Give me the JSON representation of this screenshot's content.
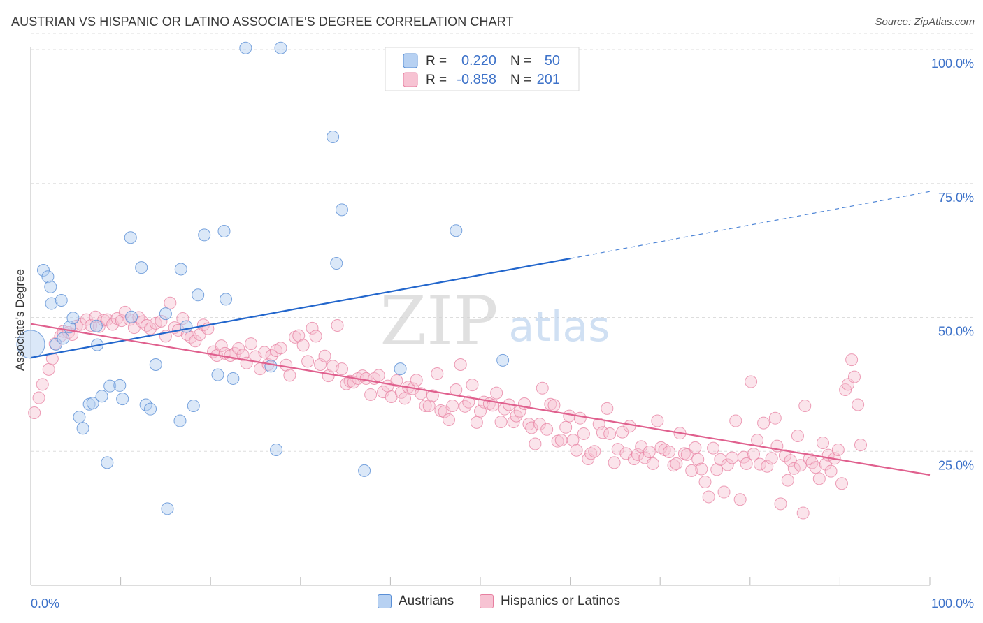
{
  "header": {
    "title": "AUSTRIAN VS HISPANIC OR LATINO ASSOCIATE'S DEGREE CORRELATION CHART",
    "source": "Source: ZipAtlas.com"
  },
  "watermark": {
    "zip": "ZIP",
    "atlas": "atlas"
  },
  "colors": {
    "blue_fill": "#b7d1f2",
    "blue_stroke": "#5a8fd6",
    "blue_line": "#2266cc",
    "pink_fill": "#f7c3d3",
    "pink_stroke": "#e77fa0",
    "pink_line": "#e0608e",
    "tick_label": "#3d72c9",
    "grid": "#dddddd"
  },
  "legend": {
    "rows": [
      {
        "r_label": "R =",
        "r_value": "0.220",
        "n_label": "N =",
        "n_value": "50"
      },
      {
        "r_label": "R =",
        "r_value": "-0.858",
        "n_label": "N =",
        "n_value": "201"
      }
    ]
  },
  "bottom_legend": {
    "austrians": "Austrians",
    "hispanics": "Hispanics or Latinos"
  },
  "chart_data": {
    "type": "scatter",
    "title": "AUSTRIAN VS HISPANIC OR LATINO ASSOCIATE'S DEGREE CORRELATION CHART",
    "xlabel": "",
    "ylabel": "Associate's Degree",
    "xlim": [
      0,
      100
    ],
    "ylim": [
      0,
      103
    ],
    "x_tick_labels": [
      "0.0%",
      "100.0%"
    ],
    "y_ticks": [
      25,
      50,
      75,
      100
    ],
    "y_tick_labels": [
      "25.0%",
      "50.0%",
      "75.0%",
      "100.0%"
    ],
    "grid": true,
    "legend_position": "top-center",
    "series": [
      {
        "name": "Austrians",
        "r": 0.22,
        "n": 50,
        "trend": {
          "x": [
            0,
            60
          ],
          "y": [
            42.5,
            61
          ],
          "extended_to": [
            100,
            73.5
          ]
        },
        "points": [
          [
            0,
            45
          ],
          [
            1.4,
            58.8
          ],
          [
            1.9,
            57.6
          ],
          [
            2.2,
            55.7
          ],
          [
            2.3,
            52.6
          ],
          [
            3.4,
            53.2
          ],
          [
            2.8,
            45
          ],
          [
            3.6,
            46.1
          ],
          [
            4.3,
            48.2
          ],
          [
            4.7,
            49.9
          ],
          [
            7.3,
            48.4
          ],
          [
            7.4,
            44.9
          ],
          [
            5.4,
            31.4
          ],
          [
            5.8,
            29.3
          ],
          [
            6.5,
            33.8
          ],
          [
            6.9,
            34
          ],
          [
            7.9,
            35.3
          ],
          [
            8.5,
            22.9
          ],
          [
            8.8,
            37.2
          ],
          [
            9.9,
            37.3
          ],
          [
            10.2,
            34.8
          ],
          [
            11.1,
            64.9
          ],
          [
            11.2,
            50.1
          ],
          [
            12.3,
            59.3
          ],
          [
            12.8,
            33.7
          ],
          [
            13.3,
            32.9
          ],
          [
            13.9,
            41.2
          ],
          [
            15.0,
            50.7
          ],
          [
            15.2,
            14.3
          ],
          [
            16.6,
            30.7
          ],
          [
            16.7,
            59
          ],
          [
            17.3,
            48.3
          ],
          [
            18.1,
            33.5
          ],
          [
            18.6,
            54.2
          ],
          [
            19.3,
            65.4
          ],
          [
            20.8,
            39.3
          ],
          [
            21.5,
            66.1
          ],
          [
            21.7,
            53.4
          ],
          [
            22.5,
            38.6
          ],
          [
            23.9,
            100.3
          ],
          [
            26.7,
            40.9
          ],
          [
            27.3,
            25.3
          ],
          [
            27.8,
            100.3
          ],
          [
            33.6,
            83.7
          ],
          [
            34.0,
            60.1
          ],
          [
            34.6,
            70.1
          ],
          [
            37.1,
            21.4
          ],
          [
            41.1,
            40.4
          ],
          [
            47.3,
            66.2
          ],
          [
            52.5,
            42
          ]
        ]
      },
      {
        "name": "Hispanics or Latinos",
        "r": -0.858,
        "n": 201,
        "trend": {
          "x": [
            0,
            100
          ],
          "y": [
            48.8,
            20.6
          ]
        },
        "points": [
          [
            0.4,
            32.2
          ],
          [
            0.9,
            35
          ],
          [
            1.3,
            37.5
          ],
          [
            2.0,
            40.3
          ],
          [
            2.4,
            42.3
          ],
          [
            2.7,
            45.1
          ],
          [
            3.3,
            46.5
          ],
          [
            3.6,
            47.4
          ],
          [
            4.2,
            47.2
          ],
          [
            4.6,
            46.8
          ],
          [
            5.1,
            48.4
          ],
          [
            5.6,
            48.7
          ],
          [
            6.2,
            49.6
          ],
          [
            6.7,
            48.5
          ],
          [
            7.2,
            50.1
          ],
          [
            7.6,
            48.3
          ],
          [
            8.1,
            49.5
          ],
          [
            8.5,
            49.6
          ],
          [
            9.1,
            48.7
          ],
          [
            9.6,
            49.8
          ],
          [
            10.1,
            49.4
          ],
          [
            10.5,
            51
          ],
          [
            11.0,
            49.6
          ],
          [
            11.5,
            48.1
          ],
          [
            12.0,
            50
          ],
          [
            12.4,
            49.2
          ],
          [
            12.9,
            48.5
          ],
          [
            13.3,
            47.9
          ],
          [
            13.9,
            48.9
          ],
          [
            14.5,
            49.3
          ],
          [
            15.0,
            46.5
          ],
          [
            15.5,
            52.7
          ],
          [
            16.0,
            48.1
          ],
          [
            16.4,
            47.6
          ],
          [
            16.9,
            49.8
          ],
          [
            17.4,
            46.8
          ],
          [
            17.8,
            46.3
          ],
          [
            18.3,
            45.6
          ],
          [
            18.8,
            46.8
          ],
          [
            19.2,
            48.6
          ],
          [
            19.7,
            47.9
          ],
          [
            20.3,
            43.6
          ],
          [
            20.7,
            42.9
          ],
          [
            21.2,
            44.7
          ],
          [
            21.6,
            43.3
          ],
          [
            22.2,
            42.9
          ],
          [
            22.7,
            43.3
          ],
          [
            23.1,
            44.2
          ],
          [
            23.6,
            43
          ],
          [
            24.0,
            41.5
          ],
          [
            24.5,
            45.1
          ],
          [
            25.0,
            42.7
          ],
          [
            25.5,
            40.4
          ],
          [
            26.0,
            43.5
          ],
          [
            26.4,
            41.2
          ],
          [
            26.8,
            42.9
          ],
          [
            27.3,
            43.8
          ],
          [
            27.8,
            44.3
          ],
          [
            28.4,
            41.1
          ],
          [
            28.8,
            39.2
          ],
          [
            29.4,
            46.3
          ],
          [
            29.8,
            46.6
          ],
          [
            30.3,
            44.8
          ],
          [
            30.8,
            41.8
          ],
          [
            31.3,
            48
          ],
          [
            31.7,
            46.5
          ],
          [
            32.2,
            41.2
          ],
          [
            32.7,
            42.8
          ],
          [
            33.1,
            39.1
          ],
          [
            33.6,
            40.9
          ],
          [
            34.1,
            48.5
          ],
          [
            34.6,
            40.4
          ],
          [
            35.1,
            37.6
          ],
          [
            35.5,
            38.1
          ],
          [
            35.9,
            37.9
          ],
          [
            36.4,
            38.6
          ],
          [
            36.9,
            39.1
          ],
          [
            37.3,
            38.6
          ],
          [
            37.8,
            35.6
          ],
          [
            38.2,
            38.6
          ],
          [
            38.7,
            39.2
          ],
          [
            39.2,
            36.1
          ],
          [
            39.7,
            37.2
          ],
          [
            40.1,
            35.2
          ],
          [
            40.7,
            38.2
          ],
          [
            41.2,
            36
          ],
          [
            41.6,
            34.9
          ],
          [
            42.0,
            37
          ],
          [
            42.5,
            36.7
          ],
          [
            42.9,
            38.3
          ],
          [
            43.4,
            35.8
          ],
          [
            43.9,
            33.5
          ],
          [
            44.3,
            33.5
          ],
          [
            44.7,
            35.4
          ],
          [
            45.2,
            39.5
          ],
          [
            45.6,
            32.6
          ],
          [
            46.0,
            32.4
          ],
          [
            46.5,
            30.9
          ],
          [
            46.9,
            33.5
          ],
          [
            47.3,
            36.5
          ],
          [
            47.8,
            41.2
          ],
          [
            48.3,
            33.4
          ],
          [
            48.7,
            34.2
          ],
          [
            49.1,
            37.4
          ],
          [
            49.6,
            30.4
          ],
          [
            50.0,
            32.5
          ],
          [
            50.4,
            34.2
          ],
          [
            51.0,
            33.9
          ],
          [
            51.4,
            33.6
          ],
          [
            51.8,
            35.9
          ],
          [
            52.3,
            30.5
          ],
          [
            52.7,
            32.9
          ],
          [
            53.2,
            33.7
          ],
          [
            53.7,
            30.5
          ],
          [
            54.0,
            31.6
          ],
          [
            54.4,
            32.5
          ],
          [
            54.9,
            33.9
          ],
          [
            55.4,
            30.1
          ],
          [
            55.7,
            29.4
          ],
          [
            56.1,
            26.4
          ],
          [
            56.6,
            30.1
          ],
          [
            56.9,
            36.8
          ],
          [
            57.4,
            29.1
          ],
          [
            57.8,
            33.8
          ],
          [
            58.2,
            33.6
          ],
          [
            58.6,
            26.9
          ],
          [
            59.0,
            27.1
          ],
          [
            59.5,
            29.5
          ],
          [
            59.9,
            31.6
          ],
          [
            60.3,
            27.1
          ],
          [
            60.7,
            25.2
          ],
          [
            61.1,
            31.2
          ],
          [
            61.5,
            28.3
          ],
          [
            62.0,
            23.6
          ],
          [
            62.3,
            24.6
          ],
          [
            62.7,
            25
          ],
          [
            63.2,
            30.1
          ],
          [
            63.6,
            28.5
          ],
          [
            64.1,
            33
          ],
          [
            64.4,
            28.3
          ],
          [
            64.9,
            22.9
          ],
          [
            65.3,
            25.4
          ],
          [
            65.8,
            28.6
          ],
          [
            66.2,
            24.6
          ],
          [
            66.6,
            29.7
          ],
          [
            67.1,
            23.6
          ],
          [
            67.5,
            24.4
          ],
          [
            67.9,
            25.9
          ],
          [
            68.3,
            23.8
          ],
          [
            68.8,
            24.9
          ],
          [
            69.2,
            22.7
          ],
          [
            69.7,
            30.7
          ],
          [
            70.1,
            25.7
          ],
          [
            70.5,
            25.3
          ],
          [
            71.0,
            24.9
          ],
          [
            71.5,
            22.4
          ],
          [
            71.8,
            22.7
          ],
          [
            72.2,
            28.4
          ],
          [
            72.7,
            24.6
          ],
          [
            73.0,
            24.4
          ],
          [
            73.5,
            21.4
          ],
          [
            73.9,
            25.7
          ],
          [
            74.2,
            23.5
          ],
          [
            74.6,
            21.7
          ],
          [
            75.0,
            19.3
          ],
          [
            75.4,
            16.5
          ],
          [
            75.9,
            25.6
          ],
          [
            76.3,
            21.6
          ],
          [
            76.7,
            23.5
          ],
          [
            77.1,
            17.4
          ],
          [
            77.5,
            22.5
          ],
          [
            78.0,
            23.8
          ],
          [
            78.4,
            30.7
          ],
          [
            78.9,
            16
          ],
          [
            79.3,
            23.9
          ],
          [
            79.6,
            22.7
          ],
          [
            80.1,
            38
          ],
          [
            80.4,
            24.5
          ],
          [
            80.8,
            27.1
          ],
          [
            81.1,
            22.6
          ],
          [
            81.5,
            30.3
          ],
          [
            81.9,
            22.2
          ],
          [
            82.4,
            23.7
          ],
          [
            82.8,
            31.2
          ],
          [
            83.0,
            26
          ],
          [
            83.4,
            15.2
          ],
          [
            83.9,
            24.2
          ],
          [
            84.2,
            19.6
          ],
          [
            84.5,
            23.3
          ],
          [
            84.9,
            21.8
          ],
          [
            85.3,
            27.9
          ],
          [
            85.6,
            22.4
          ],
          [
            85.9,
            13.5
          ],
          [
            86.1,
            33.5
          ],
          [
            86.6,
            23.6
          ],
          [
            86.9,
            22.9
          ],
          [
            87.3,
            22
          ],
          [
            87.7,
            19.9
          ],
          [
            88.1,
            26.6
          ],
          [
            88.4,
            22.6
          ],
          [
            88.7,
            24.3
          ],
          [
            89.0,
            21.3
          ],
          [
            89.4,
            23.7
          ],
          [
            89.8,
            25.3
          ],
          [
            90.2,
            19
          ],
          [
            90.6,
            36.5
          ],
          [
            90.9,
            37.5
          ],
          [
            91.3,
            42.1
          ],
          [
            91.6,
            38.9
          ],
          [
            92.0,
            33.7
          ],
          [
            92.3,
            26.2
          ]
        ]
      }
    ]
  }
}
